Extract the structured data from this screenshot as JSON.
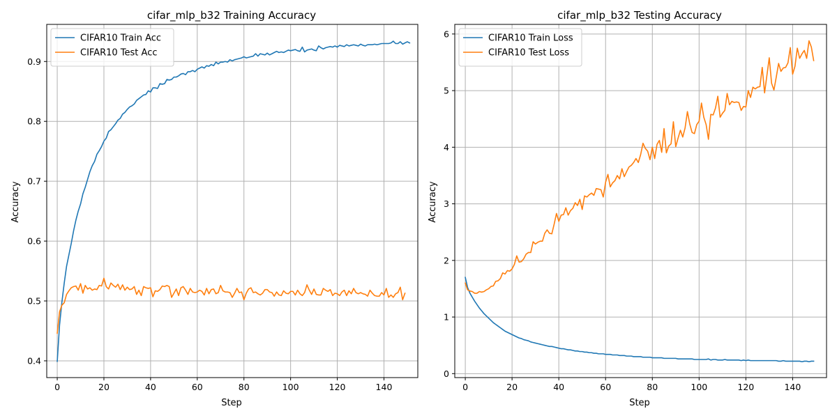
{
  "chart_data": [
    {
      "type": "line",
      "title": "cifar_mlp_b32 Training Accuracy",
      "xlabel": "Step",
      "ylabel": "Accuracy",
      "xlim": [
        -4.5,
        154.5
      ],
      "ylim": [
        0.372,
        0.962
      ],
      "xticks": [
        0,
        20,
        40,
        60,
        80,
        100,
        120,
        140
      ],
      "yticks": [
        0.4,
        0.5,
        0.6,
        0.7,
        0.8,
        0.9
      ],
      "ytick_labels": [
        "0.4",
        "0.5",
        "0.6",
        "0.7",
        "0.8",
        "0.9"
      ],
      "grid": true,
      "legend_loc": "upper-left",
      "series": [
        {
          "name": "CIFAR10 Train Acc",
          "color": "#1f77b4",
          "values": [
            0.399,
            0.46,
            0.498,
            0.53,
            0.558,
            0.577,
            0.596,
            0.617,
            0.635,
            0.65,
            0.662,
            0.679,
            0.69,
            0.703,
            0.716,
            0.726,
            0.733,
            0.745,
            0.751,
            0.758,
            0.767,
            0.772,
            0.783,
            0.786,
            0.791,
            0.796,
            0.802,
            0.805,
            0.812,
            0.815,
            0.82,
            0.824,
            0.826,
            0.829,
            0.835,
            0.838,
            0.841,
            0.844,
            0.845,
            0.851,
            0.849,
            0.856,
            0.856,
            0.855,
            0.863,
            0.862,
            0.863,
            0.87,
            0.869,
            0.87,
            0.874,
            0.874,
            0.876,
            0.879,
            0.88,
            0.878,
            0.883,
            0.883,
            0.885,
            0.883,
            0.887,
            0.889,
            0.891,
            0.889,
            0.893,
            0.892,
            0.895,
            0.893,
            0.899,
            0.896,
            0.899,
            0.899,
            0.9,
            0.899,
            0.903,
            0.901,
            0.903,
            0.904,
            0.905,
            0.906,
            0.908,
            0.906,
            0.907,
            0.908,
            0.909,
            0.913,
            0.909,
            0.913,
            0.912,
            0.911,
            0.914,
            0.911,
            0.913,
            0.915,
            0.917,
            0.915,
            0.916,
            0.915,
            0.917,
            0.919,
            0.918,
            0.919,
            0.92,
            0.918,
            0.917,
            0.924,
            0.916,
            0.919,
            0.92,
            0.921,
            0.919,
            0.918,
            0.926,
            0.923,
            0.921,
            0.923,
            0.924,
            0.925,
            0.924,
            0.926,
            0.924,
            0.927,
            0.926,
            0.925,
            0.928,
            0.926,
            0.927,
            0.928,
            0.927,
            0.926,
            0.929,
            0.927,
            0.926,
            0.928,
            0.928,
            0.928,
            0.929,
            0.928,
            0.929,
            0.93,
            0.93,
            0.93,
            0.93,
            0.931,
            0.934,
            0.93,
            0.93,
            0.933,
            0.929,
            0.931,
            0.933,
            0.931
          ]
        },
        {
          "name": "CIFAR10 Test Acc",
          "color": "#ff7f0e",
          "values": [
            0.446,
            0.482,
            0.493,
            0.497,
            0.511,
            0.517,
            0.522,
            0.524,
            0.525,
            0.518,
            0.529,
            0.513,
            0.526,
            0.52,
            0.522,
            0.518,
            0.52,
            0.519,
            0.526,
            0.525,
            0.538,
            0.524,
            0.52,
            0.53,
            0.526,
            0.523,
            0.528,
            0.519,
            0.527,
            0.518,
            0.523,
            0.519,
            0.52,
            0.524,
            0.511,
            0.518,
            0.509,
            0.524,
            0.522,
            0.521,
            0.522,
            0.507,
            0.517,
            0.516,
            0.519,
            0.525,
            0.524,
            0.526,
            0.524,
            0.506,
            0.513,
            0.52,
            0.509,
            0.522,
            0.524,
            0.518,
            0.511,
            0.521,
            0.515,
            0.514,
            0.515,
            0.518,
            0.516,
            0.51,
            0.521,
            0.512,
            0.519,
            0.52,
            0.512,
            0.514,
            0.526,
            0.517,
            0.515,
            0.515,
            0.514,
            0.506,
            0.513,
            0.521,
            0.514,
            0.515,
            0.502,
            0.513,
            0.52,
            0.522,
            0.514,
            0.515,
            0.512,
            0.51,
            0.513,
            0.519,
            0.519,
            0.515,
            0.514,
            0.508,
            0.515,
            0.51,
            0.509,
            0.517,
            0.513,
            0.512,
            0.516,
            0.516,
            0.51,
            0.518,
            0.512,
            0.509,
            0.514,
            0.527,
            0.518,
            0.511,
            0.52,
            0.511,
            0.51,
            0.51,
            0.521,
            0.518,
            0.516,
            0.519,
            0.509,
            0.513,
            0.512,
            0.509,
            0.515,
            0.518,
            0.509,
            0.517,
            0.512,
            0.521,
            0.514,
            0.512,
            0.514,
            0.512,
            0.511,
            0.508,
            0.518,
            0.513,
            0.509,
            0.508,
            0.508,
            0.514,
            0.51,
            0.521,
            0.506,
            0.51,
            0.506,
            0.512,
            0.514,
            0.523,
            0.502,
            0.513
          ]
        }
      ]
    },
    {
      "type": "line",
      "title": "cifar_mlp_b32 Testing Accuracy",
      "xlabel": "Step",
      "ylabel": "Accuracy",
      "xlim": [
        -4.5,
        154.5
      ],
      "ylim": [
        -0.07,
        6.17
      ],
      "xticks": [
        0,
        20,
        40,
        60,
        80,
        100,
        120,
        140
      ],
      "yticks": [
        0,
        1,
        2,
        3,
        4,
        5,
        6
      ],
      "ytick_labels": [
        "0",
        "1",
        "2",
        "3",
        "4",
        "5",
        "6"
      ],
      "grid": true,
      "legend_loc": "upper-left",
      "series": [
        {
          "name": "CIFAR10 Train Loss",
          "color": "#1f77b4",
          "values": [
            1.7,
            1.52,
            1.42,
            1.35,
            1.28,
            1.22,
            1.16,
            1.11,
            1.06,
            1.02,
            0.98,
            0.94,
            0.9,
            0.87,
            0.84,
            0.81,
            0.78,
            0.75,
            0.73,
            0.71,
            0.69,
            0.67,
            0.65,
            0.63,
            0.62,
            0.6,
            0.59,
            0.58,
            0.56,
            0.55,
            0.54,
            0.53,
            0.52,
            0.51,
            0.5,
            0.49,
            0.48,
            0.48,
            0.47,
            0.46,
            0.45,
            0.44,
            0.44,
            0.43,
            0.42,
            0.42,
            0.41,
            0.4,
            0.4,
            0.39,
            0.39,
            0.38,
            0.38,
            0.37,
            0.37,
            0.36,
            0.36,
            0.35,
            0.35,
            0.35,
            0.34,
            0.34,
            0.34,
            0.33,
            0.33,
            0.33,
            0.32,
            0.32,
            0.32,
            0.31,
            0.31,
            0.31,
            0.3,
            0.3,
            0.3,
            0.3,
            0.29,
            0.29,
            0.29,
            0.29,
            0.28,
            0.28,
            0.28,
            0.28,
            0.28,
            0.27,
            0.27,
            0.27,
            0.27,
            0.27,
            0.27,
            0.26,
            0.26,
            0.26,
            0.26,
            0.26,
            0.26,
            0.26,
            0.25,
            0.25,
            0.25,
            0.25,
            0.25,
            0.25,
            0.26,
            0.24,
            0.25,
            0.25,
            0.24,
            0.24,
            0.24,
            0.25,
            0.24,
            0.24,
            0.24,
            0.24,
            0.24,
            0.24,
            0.23,
            0.24,
            0.23,
            0.24,
            0.23,
            0.23,
            0.23,
            0.23,
            0.23,
            0.23,
            0.23,
            0.23,
            0.23,
            0.23,
            0.23,
            0.23,
            0.22,
            0.22,
            0.23,
            0.22,
            0.22,
            0.22,
            0.22,
            0.22,
            0.22,
            0.22,
            0.21,
            0.22,
            0.22,
            0.21,
            0.22,
            0.22
          ]
        },
        {
          "name": "CIFAR10 Test Loss",
          "color": "#ff7f0e",
          "values": [
            1.6,
            1.48,
            1.46,
            1.45,
            1.42,
            1.42,
            1.45,
            1.44,
            1.45,
            1.48,
            1.5,
            1.54,
            1.55,
            1.63,
            1.64,
            1.68,
            1.78,
            1.76,
            1.82,
            1.81,
            1.85,
            1.93,
            2.08,
            1.97,
            1.98,
            2.03,
            2.11,
            2.14,
            2.14,
            2.33,
            2.29,
            2.32,
            2.34,
            2.34,
            2.48,
            2.54,
            2.48,
            2.47,
            2.64,
            2.83,
            2.69,
            2.8,
            2.81,
            2.93,
            2.8,
            2.88,
            2.92,
            3.02,
            2.97,
            3.08,
            2.9,
            3.14,
            3.12,
            3.16,
            3.19,
            3.15,
            3.27,
            3.26,
            3.25,
            3.12,
            3.38,
            3.52,
            3.3,
            3.37,
            3.41,
            3.5,
            3.44,
            3.62,
            3.48,
            3.57,
            3.65,
            3.68,
            3.73,
            3.8,
            3.73,
            3.87,
            4.07,
            3.98,
            3.93,
            3.78,
            4.0,
            3.8,
            4.05,
            4.12,
            3.91,
            4.33,
            3.9,
            4.02,
            4.06,
            4.45,
            4.01,
            4.16,
            4.3,
            4.18,
            4.34,
            4.63,
            4.41,
            4.26,
            4.24,
            4.4,
            4.46,
            4.78,
            4.53,
            4.4,
            4.14,
            4.58,
            4.57,
            4.69,
            4.9,
            4.53,
            4.6,
            4.65,
            4.95,
            4.75,
            4.81,
            4.79,
            4.8,
            4.79,
            4.65,
            4.72,
            4.71,
            5.0,
            4.88,
            5.06,
            5.03,
            5.06,
            5.07,
            5.41,
            4.96,
            5.27,
            5.58,
            5.13,
            5.01,
            5.24,
            5.48,
            5.34,
            5.4,
            5.41,
            5.49,
            5.76,
            5.29,
            5.43,
            5.75,
            5.57,
            5.65,
            5.71,
            5.57,
            5.88,
            5.77,
            5.53
          ]
        }
      ]
    }
  ]
}
